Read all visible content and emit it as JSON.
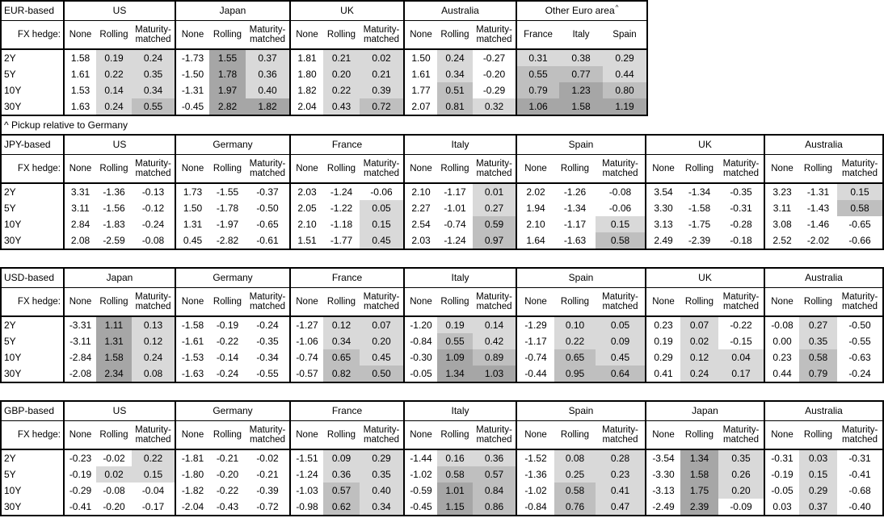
{
  "meta": {
    "fx_hedge_label": "FX hedge:",
    "row_labels": [
      "2Y",
      "5Y",
      "10Y",
      "30Y"
    ],
    "footnote": "^ Pickup relative to Germany"
  },
  "shading": {
    "colors": {
      "none": "#ffffff",
      "light": "#d9d9d9",
      "medium": "#bfbfbf",
      "dark": "#a6a6a6"
    },
    "thresholds": {
      "light_min": 0.0,
      "medium_min": 0.5,
      "dark_min": 1.0
    }
  },
  "tables": [
    {
      "id": "eur-based",
      "base_label": "EUR-based",
      "groups": [
        {
          "name": "US",
          "columns": [
            "None",
            "Rolling",
            "Maturity-matched"
          ],
          "shaded_columns": [
            1,
            2
          ],
          "rows": [
            [
              "1.58",
              "0.19",
              "0.24"
            ],
            [
              "1.61",
              "0.22",
              "0.35"
            ],
            [
              "1.53",
              "0.14",
              "0.34"
            ],
            [
              "1.63",
              "0.24",
              "0.55"
            ]
          ]
        },
        {
          "name": "Japan",
          "columns": [
            "None",
            "Rolling",
            "Maturity-matched"
          ],
          "shaded_columns": [
            1,
            2
          ],
          "rows": [
            [
              "-1.73",
              "1.55",
              "0.37"
            ],
            [
              "-1.50",
              "1.78",
              "0.36"
            ],
            [
              "-1.31",
              "1.97",
              "0.40"
            ],
            [
              "-0.45",
              "2.82",
              "1.82"
            ]
          ]
        },
        {
          "name": "UK",
          "columns": [
            "None",
            "Rolling",
            "Maturity-matched"
          ],
          "shaded_columns": [
            1,
            2
          ],
          "rows": [
            [
              "1.81",
              "0.21",
              "0.02"
            ],
            [
              "1.80",
              "0.20",
              "0.21"
            ],
            [
              "1.82",
              "0.22",
              "0.39"
            ],
            [
              "2.04",
              "0.43",
              "0.72"
            ]
          ]
        },
        {
          "name": "Australia",
          "columns": [
            "None",
            "Rolling",
            "Maturity-matched"
          ],
          "shaded_columns": [
            1,
            2
          ],
          "rows": [
            [
              "1.50",
              "0.24",
              "-0.27"
            ],
            [
              "1.61",
              "0.34",
              "-0.20"
            ],
            [
              "1.77",
              "0.51",
              "-0.29"
            ],
            [
              "2.07",
              "0.81",
              "0.32"
            ]
          ]
        },
        {
          "name": "Other Euro area",
          "superscript": "^",
          "equal_cols": true,
          "columns": [
            "France",
            "Italy",
            "Spain"
          ],
          "shaded_columns": [
            0,
            1,
            2
          ],
          "rows": [
            [
              "0.31",
              "0.38",
              "0.29"
            ],
            [
              "0.55",
              "0.77",
              "0.44"
            ],
            [
              "0.79",
              "1.23",
              "0.80"
            ],
            [
              "1.06",
              "1.58",
              "1.19"
            ]
          ]
        }
      ]
    },
    {
      "id": "jpy-based",
      "base_label": "JPY-based",
      "groups": [
        {
          "name": "US",
          "columns": [
            "None",
            "Rolling",
            "Maturity-matched"
          ],
          "shaded_columns": [
            1,
            2
          ],
          "rows": [
            [
              "3.31",
              "-1.36",
              "-0.13"
            ],
            [
              "3.11",
              "-1.56",
              "-0.12"
            ],
            [
              "2.84",
              "-1.83",
              "-0.24"
            ],
            [
              "2.08",
              "-2.59",
              "-0.08"
            ]
          ]
        },
        {
          "name": "Germany",
          "columns": [
            "None",
            "Rolling",
            "Maturity-matched"
          ],
          "shaded_columns": [
            1,
            2
          ],
          "rows": [
            [
              "1.73",
              "-1.55",
              "-0.37"
            ],
            [
              "1.50",
              "-1.78",
              "-0.50"
            ],
            [
              "1.31",
              "-1.97",
              "-0.65"
            ],
            [
              "0.45",
              "-2.82",
              "-0.61"
            ]
          ]
        },
        {
          "name": "France",
          "columns": [
            "None",
            "Rolling",
            "Maturity-matched"
          ],
          "shaded_columns": [
            1,
            2
          ],
          "rows": [
            [
              "2.03",
              "-1.24",
              "-0.06"
            ],
            [
              "2.05",
              "-1.22",
              "0.05"
            ],
            [
              "2.10",
              "-1.18",
              "0.15"
            ],
            [
              "1.51",
              "-1.77",
              "0.45"
            ]
          ]
        },
        {
          "name": "Italy",
          "columns": [
            "None",
            "Rolling",
            "Maturity-matched"
          ],
          "shaded_columns": [
            1,
            2
          ],
          "rows": [
            [
              "2.10",
              "-1.17",
              "0.01"
            ],
            [
              "2.27",
              "-1.01",
              "0.27"
            ],
            [
              "2.54",
              "-0.74",
              "0.59"
            ],
            [
              "2.03",
              "-1.24",
              "0.97"
            ]
          ]
        },
        {
          "name": "Spain",
          "columns": [
            "None",
            "Rolling",
            "Maturity-matched"
          ],
          "shaded_columns": [
            1,
            2
          ],
          "rows": [
            [
              "2.02",
              "-1.26",
              "-0.08"
            ],
            [
              "1.94",
              "-1.34",
              "-0.06"
            ],
            [
              "2.10",
              "-1.17",
              "0.15"
            ],
            [
              "1.64",
              "-1.63",
              "0.58"
            ]
          ]
        },
        {
          "name": "UK",
          "columns": [
            "None",
            "Rolling",
            "Maturity-matched"
          ],
          "shaded_columns": [
            1,
            2
          ],
          "rows": [
            [
              "3.54",
              "-1.34",
              "-0.35"
            ],
            [
              "3.30",
              "-1.58",
              "-0.31"
            ],
            [
              "3.13",
              "-1.75",
              "-0.28"
            ],
            [
              "2.49",
              "-2.39",
              "-0.18"
            ]
          ]
        },
        {
          "name": "Australia",
          "columns": [
            "None",
            "Rolling",
            "Maturity-matched"
          ],
          "shaded_columns": [
            1,
            2
          ],
          "rows": [
            [
              "3.23",
              "-1.31",
              "0.15"
            ],
            [
              "3.11",
              "-1.43",
              "0.58"
            ],
            [
              "3.08",
              "-1.46",
              "-0.65"
            ],
            [
              "2.52",
              "-2.02",
              "-0.66"
            ]
          ]
        }
      ]
    },
    {
      "id": "usd-based",
      "base_label": "USD-based",
      "groups": [
        {
          "name": "Japan",
          "columns": [
            "None",
            "Rolling",
            "Maturity-matched"
          ],
          "shaded_columns": [
            1,
            2
          ],
          "rows": [
            [
              "-3.31",
              "1.11",
              "0.13"
            ],
            [
              "-3.11",
              "1.31",
              "0.12"
            ],
            [
              "-2.84",
              "1.58",
              "0.24"
            ],
            [
              "-2.08",
              "2.34",
              "0.08"
            ]
          ]
        },
        {
          "name": "Germany",
          "columns": [
            "None",
            "Rolling",
            "Maturity-matched"
          ],
          "shaded_columns": [
            1,
            2
          ],
          "rows": [
            [
              "-1.58",
              "-0.19",
              "-0.24"
            ],
            [
              "-1.61",
              "-0.22",
              "-0.35"
            ],
            [
              "-1.53",
              "-0.14",
              "-0.34"
            ],
            [
              "-1.63",
              "-0.24",
              "-0.55"
            ]
          ]
        },
        {
          "name": "France",
          "columns": [
            "None",
            "Rolling",
            "Maturity-matched"
          ],
          "shaded_columns": [
            1,
            2
          ],
          "rows": [
            [
              "-1.27",
              "0.12",
              "0.07"
            ],
            [
              "-1.06",
              "0.34",
              "0.20"
            ],
            [
              "-0.74",
              "0.65",
              "0.45"
            ],
            [
              "-0.57",
              "0.82",
              "0.50"
            ]
          ]
        },
        {
          "name": "Italy",
          "columns": [
            "None",
            "Rolling",
            "Maturity-matched"
          ],
          "shaded_columns": [
            1,
            2
          ],
          "rows": [
            [
              "-1.20",
              "0.19",
              "0.14"
            ],
            [
              "-0.84",
              "0.55",
              "0.42"
            ],
            [
              "-0.30",
              "1.09",
              "0.89"
            ],
            [
              "-0.05",
              "1.34",
              "1.03"
            ]
          ]
        },
        {
          "name": "Spain",
          "columns": [
            "None",
            "Rolling",
            "Maturity-matched"
          ],
          "shaded_columns": [
            1,
            2
          ],
          "rows": [
            [
              "-1.29",
              "0.10",
              "0.05"
            ],
            [
              "-1.17",
              "0.22",
              "0.09"
            ],
            [
              "-0.74",
              "0.65",
              "0.45"
            ],
            [
              "-0.44",
              "0.95",
              "0.64"
            ]
          ]
        },
        {
          "name": "UK",
          "columns": [
            "None",
            "Rolling",
            "Maturity-matched"
          ],
          "shaded_columns": [
            1,
            2
          ],
          "rows": [
            [
              "0.23",
              "0.07",
              "-0.22"
            ],
            [
              "0.19",
              "0.02",
              "-0.15"
            ],
            [
              "0.29",
              "0.12",
              "0.04"
            ],
            [
              "0.41",
              "0.24",
              "0.17"
            ]
          ]
        },
        {
          "name": "Australia",
          "columns": [
            "None",
            "Rolling",
            "Maturity-matched"
          ],
          "shaded_columns": [
            1,
            2
          ],
          "rows": [
            [
              "-0.08",
              "0.27",
              "-0.50"
            ],
            [
              "0.00",
              "0.35",
              "-0.55"
            ],
            [
              "0.23",
              "0.58",
              "-0.63"
            ],
            [
              "0.44",
              "0.79",
              "-0.24"
            ]
          ]
        }
      ]
    },
    {
      "id": "gbp-based",
      "base_label": "GBP-based",
      "groups": [
        {
          "name": "US",
          "columns": [
            "None",
            "Rolling",
            "Maturity-matched"
          ],
          "shaded_columns": [
            1,
            2
          ],
          "rows": [
            [
              "-0.23",
              "-0.02",
              "0.22"
            ],
            [
              "-0.19",
              "0.02",
              "0.15"
            ],
            [
              "-0.29",
              "-0.08",
              "-0.04"
            ],
            [
              "-0.41",
              "-0.20",
              "-0.17"
            ]
          ]
        },
        {
          "name": "Germany",
          "columns": [
            "None",
            "Rolling",
            "Maturity-matched"
          ],
          "shaded_columns": [
            1,
            2
          ],
          "rows": [
            [
              "-1.81",
              "-0.21",
              "-0.02"
            ],
            [
              "-1.80",
              "-0.20",
              "-0.21"
            ],
            [
              "-1.82",
              "-0.22",
              "-0.39"
            ],
            [
              "-2.04",
              "-0.43",
              "-0.72"
            ]
          ]
        },
        {
          "name": "France",
          "columns": [
            "None",
            "Rolling",
            "Maturity-matched"
          ],
          "shaded_columns": [
            1,
            2
          ],
          "rows": [
            [
              "-1.51",
              "0.09",
              "0.29"
            ],
            [
              "-1.24",
              "0.36",
              "0.35"
            ],
            [
              "-1.03",
              "0.57",
              "0.40"
            ],
            [
              "-0.98",
              "0.62",
              "0.34"
            ]
          ]
        },
        {
          "name": "Italy",
          "columns": [
            "None",
            "Rolling",
            "Maturity-matched"
          ],
          "shaded_columns": [
            1,
            2
          ],
          "rows": [
            [
              "-1.44",
              "0.16",
              "0.36"
            ],
            [
              "-1.02",
              "0.58",
              "0.57"
            ],
            [
              "-0.59",
              "1.01",
              "0.84"
            ],
            [
              "-0.45",
              "1.15",
              "0.86"
            ]
          ]
        },
        {
          "name": "Spain",
          "columns": [
            "None",
            "Rolling",
            "Maturity-matched"
          ],
          "shaded_columns": [
            1,
            2
          ],
          "rows": [
            [
              "-1.52",
              "0.08",
              "0.28"
            ],
            [
              "-1.36",
              "0.25",
              "0.23"
            ],
            [
              "-1.02",
              "0.58",
              "0.41"
            ],
            [
              "-0.84",
              "0.76",
              "0.47"
            ]
          ]
        },
        {
          "name": "Japan",
          "columns": [
            "None",
            "Rolling",
            "Maturity-matched"
          ],
          "shaded_columns": [
            1,
            2
          ],
          "rows": [
            [
              "-3.54",
              "1.34",
              "0.35"
            ],
            [
              "-3.30",
              "1.58",
              "0.26"
            ],
            [
              "-3.13",
              "1.75",
              "0.20"
            ],
            [
              "-2.49",
              "2.39",
              "-0.09"
            ]
          ]
        },
        {
          "name": "Australia",
          "columns": [
            "None",
            "Rolling",
            "Maturity-matched"
          ],
          "shaded_columns": [
            1,
            2
          ],
          "rows": [
            [
              "-0.31",
              "0.03",
              "-0.31"
            ],
            [
              "-0.19",
              "0.15",
              "-0.41"
            ],
            [
              "-0.05",
              "0.29",
              "-0.68"
            ],
            [
              "0.03",
              "0.37",
              "-0.40"
            ]
          ]
        }
      ]
    }
  ]
}
